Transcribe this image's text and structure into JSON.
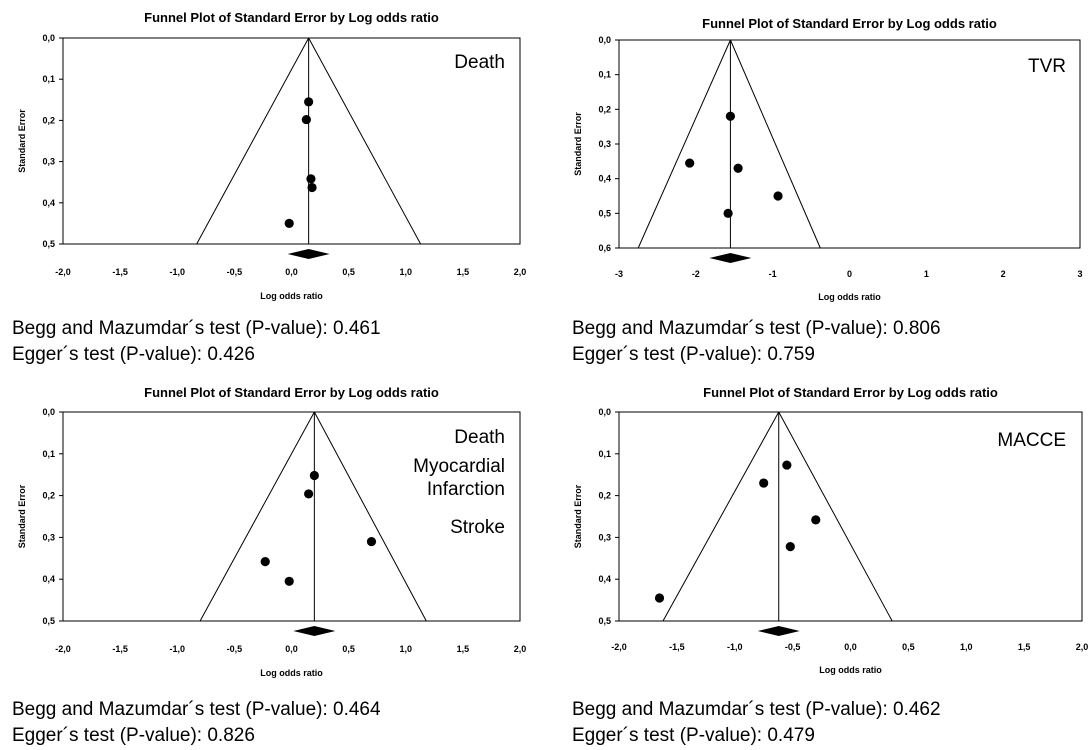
{
  "chart_data": [
    {
      "type": "scatter",
      "title": "Funnel Plot of Standard Error by Log odds ratio",
      "xlabel": "Log odds ratio",
      "ylabel": "Standard Error",
      "xlim": [
        -2.0,
        2.0
      ],
      "ylim": [
        0.0,
        0.5
      ],
      "xticks": [
        "-2,0",
        "-1,5",
        "-1,0",
        "-0,5",
        "0,0",
        "0,5",
        "1,0",
        "1,5",
        "2,0"
      ],
      "yticks": [
        "0,0",
        "0,1",
        "0,2",
        "0,3",
        "0,4",
        "0,5"
      ],
      "annotations": [
        "Death"
      ],
      "pooled_effect": 0.15,
      "funnel_bottom_x": [
        -0.83,
        1.13
      ],
      "points": [
        {
          "x": 0.15,
          "y": 0.155
        },
        {
          "x": 0.13,
          "y": 0.198
        },
        {
          "x": 0.17,
          "y": 0.342
        },
        {
          "x": 0.18,
          "y": 0.363
        },
        {
          "x": -0.02,
          "y": 0.45
        }
      ],
      "begg_label": "Begg and Mazumdar´s test (P-value): 0.461",
      "egger_label": "Egger´s test (P-value):  0.426"
    },
    {
      "type": "scatter",
      "title": "Funnel Plot of Standard Error by Log odds ratio",
      "xlabel": "Log odds ratio",
      "ylabel": "Standard Error",
      "xlim": [
        -3,
        3
      ],
      "ylim": [
        0.0,
        0.6
      ],
      "xticks": [
        "-3",
        "-2",
        "-1",
        "0",
        "1",
        "2",
        "3"
      ],
      "yticks": [
        "0,0",
        "0,1",
        "0,2",
        "0,3",
        "0,4",
        "0,5",
        "0,6"
      ],
      "annotations": [
        "TVR"
      ],
      "pooled_effect": -1.55,
      "funnel_bottom_x": [
        -2.75,
        -0.38
      ],
      "points": [
        {
          "x": -1.55,
          "y": 0.22
        },
        {
          "x": -2.08,
          "y": 0.355
        },
        {
          "x": -1.45,
          "y": 0.37
        },
        {
          "x": -0.93,
          "y": 0.45
        },
        {
          "x": -1.58,
          "y": 0.5
        }
      ],
      "begg_label": "Begg and Mazumdar´s test (P-value): 0.806",
      "egger_label": "Egger´s test (P-value):  0.759"
    },
    {
      "type": "scatter",
      "title": "Funnel Plot of Standard Error by Log odds ratio",
      "xlabel": "Log odds ratio",
      "ylabel": "Standard Error",
      "xlim": [
        -2.0,
        2.0
      ],
      "ylim": [
        0.0,
        0.5
      ],
      "xticks": [
        "-2,0",
        "-1,5",
        "-1,0",
        "-0,5",
        "0,0",
        "0,5",
        "1,0",
        "1,5",
        "2,0"
      ],
      "yticks": [
        "0,0",
        "0,1",
        "0,2",
        "0,3",
        "0,4",
        "0,5"
      ],
      "annotations": [
        "Death",
        "Myocardial",
        "Infarction",
        "Stroke"
      ],
      "pooled_effect": 0.2,
      "funnel_bottom_x": [
        -0.8,
        1.18
      ],
      "points": [
        {
          "x": 0.2,
          "y": 0.152
        },
        {
          "x": 0.15,
          "y": 0.196
        },
        {
          "x": 0.7,
          "y": 0.31
        },
        {
          "x": -0.23,
          "y": 0.358
        },
        {
          "x": -0.02,
          "y": 0.405
        }
      ],
      "begg_label": "Begg and Mazumdar´s test (P-value): 0.464",
      "egger_label": "Egger´s test (P-value):  0.826"
    },
    {
      "type": "scatter",
      "title": "Funnel Plot of Standard Error by Log odds ratio",
      "xlabel": "Log odds ratio",
      "ylabel": "Standard Error",
      "xlim": [
        -2.0,
        2.0
      ],
      "ylim": [
        0.0,
        0.5
      ],
      "xticks": [
        "-2,0",
        "-1,5",
        "-1,0",
        "-0,5",
        "0,0",
        "0,5",
        "1,0",
        "1,5",
        "2,0"
      ],
      "yticks": [
        "0,0",
        "0,1",
        "0,2",
        "0,3",
        "0,4",
        "0,5"
      ],
      "annotations": [
        "MACCE"
      ],
      "pooled_effect": -0.62,
      "funnel_bottom_x": [
        -1.62,
        0.36
      ],
      "points": [
        {
          "x": -0.55,
          "y": 0.127
        },
        {
          "x": -0.75,
          "y": 0.17
        },
        {
          "x": -0.3,
          "y": 0.258
        },
        {
          "x": -0.52,
          "y": 0.322
        },
        {
          "x": -1.65,
          "y": 0.445
        }
      ],
      "begg_label": "Begg and Mazumdar´s test (P-value): 0.462",
      "egger_label": "Egger´s test (P-value):  0.479"
    }
  ]
}
